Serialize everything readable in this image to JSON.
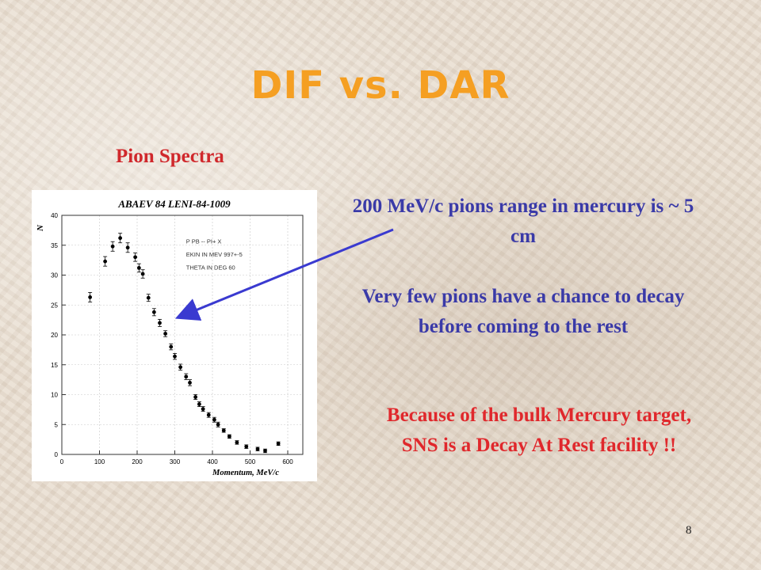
{
  "slide": {
    "title": "DIF vs. DAR",
    "subtitle": "Pion Spectra",
    "note1": "200 MeV/c pions range in mercury is ~ 5 cm",
    "note2": "Very few pions have a chance to decay before coming to the rest",
    "note3": "Because of the bulk Mercury target, SNS is a Decay At Rest facility !!",
    "page_number": "8"
  },
  "colors": {
    "title": "#f59f22",
    "subtitle": "#d0282c",
    "blue_text": "#3a3aa8",
    "red_text": "#e0282c",
    "arrow": "#3a3ad0"
  },
  "chart_data": {
    "type": "scatter",
    "title": "ABAEV 84    LENI-84-1009",
    "xlabel": "Momentum, MeV/c",
    "ylabel": "N",
    "xlim": [
      0,
      640
    ],
    "ylim": [
      0,
      40
    ],
    "x_ticks": [
      0,
      100,
      200,
      300,
      400,
      500,
      600
    ],
    "y_ticks": [
      0,
      5,
      10,
      15,
      20,
      25,
      30,
      35,
      40
    ],
    "grid": true,
    "legend_lines": [
      "P PB -- PI+ X",
      "EKIN IN MEV   997+-5",
      "THETA IN DEG   60"
    ],
    "points": [
      {
        "x": 75,
        "y": 26.3,
        "err": 0.8
      },
      {
        "x": 115,
        "y": 32.3,
        "err": 0.8
      },
      {
        "x": 135,
        "y": 34.8,
        "err": 0.8
      },
      {
        "x": 155,
        "y": 36.2,
        "err": 0.8
      },
      {
        "x": 175,
        "y": 34.6,
        "err": 0.8
      },
      {
        "x": 195,
        "y": 33.0,
        "err": 0.7
      },
      {
        "x": 205,
        "y": 31.2,
        "err": 0.7
      },
      {
        "x": 215,
        "y": 30.2,
        "err": 0.7
      },
      {
        "x": 230,
        "y": 26.2,
        "err": 0.6
      },
      {
        "x": 245,
        "y": 23.8,
        "err": 0.6
      },
      {
        "x": 260,
        "y": 22.0,
        "err": 0.6
      },
      {
        "x": 275,
        "y": 20.2,
        "err": 0.5
      },
      {
        "x": 290,
        "y": 18.0,
        "err": 0.5
      },
      {
        "x": 300,
        "y": 16.4,
        "err": 0.5
      },
      {
        "x": 315,
        "y": 14.6,
        "err": 0.5
      },
      {
        "x": 330,
        "y": 13.0,
        "err": 0.5
      },
      {
        "x": 340,
        "y": 12.0,
        "err": 0.5
      },
      {
        "x": 355,
        "y": 9.6,
        "err": 0.4
      },
      {
        "x": 365,
        "y": 8.4,
        "err": 0.4
      },
      {
        "x": 375,
        "y": 7.6,
        "err": 0.4
      },
      {
        "x": 390,
        "y": 6.6,
        "err": 0.4
      },
      {
        "x": 405,
        "y": 5.8,
        "err": 0.4
      },
      {
        "x": 415,
        "y": 5.0,
        "err": 0.4
      },
      {
        "x": 430,
        "y": 4.0,
        "err": 0.3
      },
      {
        "x": 445,
        "y": 3.0,
        "err": 0.3
      },
      {
        "x": 465,
        "y": 2.0,
        "err": 0.3
      },
      {
        "x": 490,
        "y": 1.3,
        "err": 0.3
      },
      {
        "x": 520,
        "y": 0.9,
        "err": 0.3
      },
      {
        "x": 540,
        "y": 0.6,
        "err": 0.3
      },
      {
        "x": 575,
        "y": 1.8,
        "err": 0.3
      }
    ]
  }
}
